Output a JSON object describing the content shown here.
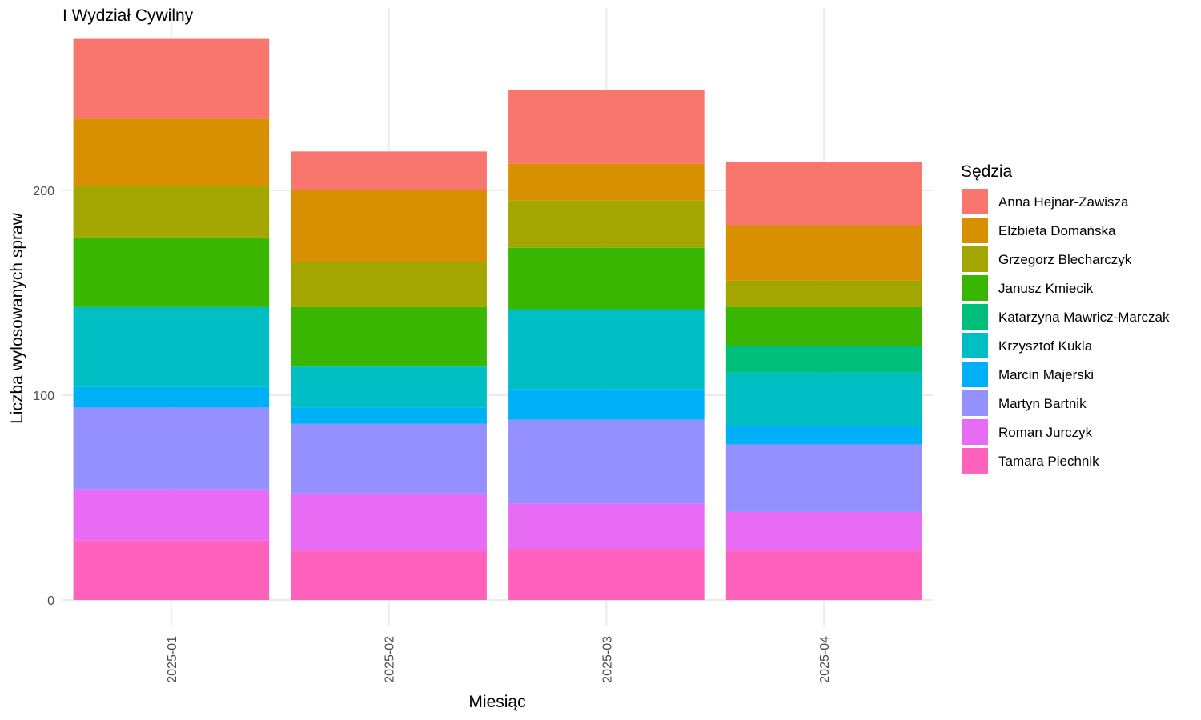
{
  "chart_data": {
    "type": "bar",
    "stacked": true,
    "title": "I Wydział Cywilny",
    "xlabel": "Miesiąc",
    "ylabel": "Liczba wylosowanych spraw",
    "ylim": [
      0,
      280
    ],
    "yticks": [
      0,
      100,
      200
    ],
    "grid": true,
    "legend_title": "Sędzia",
    "legend_position": "right",
    "categories": [
      "2025-01",
      "2025-02",
      "2025-03",
      "2025-04"
    ],
    "series": [
      {
        "name": "Anna Hejnar-Zawisza",
        "color": "#F8766D",
        "values": [
          39,
          19,
          36,
          31
        ]
      },
      {
        "name": "Elżbieta Domańska",
        "color": "#D89000",
        "values": [
          33,
          35,
          18,
          27
        ]
      },
      {
        "name": "Grzegorz Blecharczyk",
        "color": "#A3A500",
        "values": [
          25,
          22,
          23,
          13
        ]
      },
      {
        "name": "Janusz Kmiecik",
        "color": "#39B600",
        "values": [
          34,
          29,
          30,
          19
        ]
      },
      {
        "name": "Katarzyna Mawricz-Marczak",
        "color": "#00BF7D",
        "values": [
          0,
          0,
          0,
          13
        ]
      },
      {
        "name": "Krzysztof Kukla",
        "color": "#00BFC4",
        "values": [
          39,
          20,
          39,
          26
        ]
      },
      {
        "name": "Marcin Majerski",
        "color": "#00B0F6",
        "values": [
          10,
          8,
          15,
          9
        ]
      },
      {
        "name": "Martyn Bartnik",
        "color": "#9590FF",
        "values": [
          40,
          34,
          41,
          33
        ]
      },
      {
        "name": "Roman Jurczyk",
        "color": "#E76BF3",
        "values": [
          25,
          28,
          22,
          19
        ]
      },
      {
        "name": "Tamara Piechnik",
        "color": "#FF62BC",
        "values": [
          29,
          24,
          25,
          24
        ]
      }
    ]
  }
}
